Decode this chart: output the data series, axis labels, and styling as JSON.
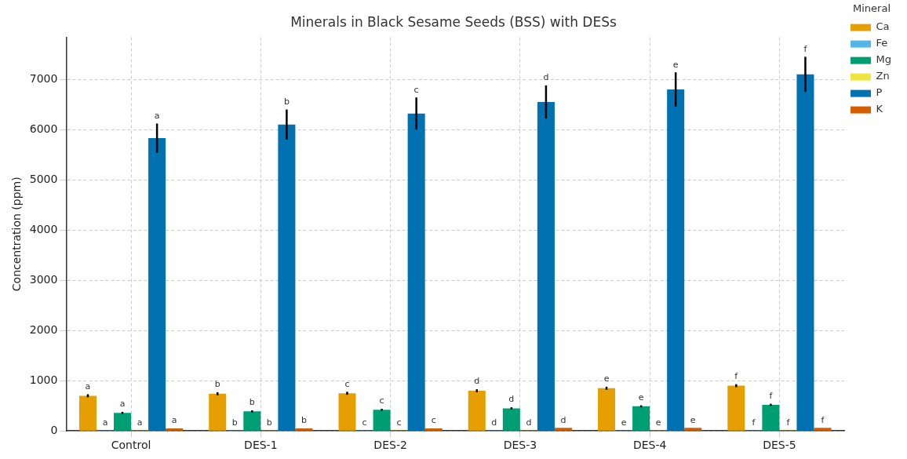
{
  "chart_data": {
    "type": "bar",
    "title": "Minerals in Black Sesame Seeds (BSS) with DESs",
    "ylabel": "Concentration (ppm)",
    "legend_title": "Mineral",
    "categories": [
      "Control",
      "DES-1",
      "DES-2",
      "DES-3",
      "DES-4",
      "DES-5"
    ],
    "series": [
      {
        "name": "Ca",
        "color": "#e69f00",
        "values": [
          700,
          740,
          750,
          800,
          850,
          900
        ],
        "errors": [
          30,
          30,
          30,
          30,
          30,
          30
        ],
        "value_labels": [
          "a",
          "b",
          "c",
          "d",
          "e",
          "f"
        ]
      },
      {
        "name": "Fe",
        "color": "#56b4e9",
        "values": [
          10,
          10,
          10,
          10,
          10,
          10
        ],
        "value_labels": [
          "a",
          "b",
          "c",
          "d",
          "e",
          "f"
        ]
      },
      {
        "name": "Mg",
        "color": "#009e73",
        "values": [
          360,
          390,
          420,
          450,
          490,
          520
        ],
        "errors": [
          20,
          20,
          20,
          20,
          20,
          20
        ],
        "value_labels": [
          "a",
          "b",
          "c",
          "d",
          "e",
          "f"
        ]
      },
      {
        "name": "Zn",
        "color": "#f0e442",
        "values": [
          10,
          10,
          10,
          10,
          10,
          10
        ],
        "value_labels": [
          "a",
          "b",
          "c",
          "d",
          "e",
          "f"
        ]
      },
      {
        "name": "P",
        "color": "#0072b2",
        "values": [
          5830,
          6100,
          6320,
          6550,
          6800,
          7100
        ],
        "errors": [
          290,
          300,
          320,
          330,
          340,
          350
        ],
        "value_labels": [
          "a",
          "b",
          "c",
          "d",
          "e",
          "f"
        ]
      },
      {
        "name": "K",
        "color": "#d55e00",
        "values": [
          50,
          50,
          50,
          60,
          60,
          60
        ],
        "value_labels": [
          "a",
          "b",
          "c",
          "d",
          "e",
          "f"
        ]
      }
    ],
    "ylim": [
      0,
      7840
    ],
    "yticks": [
      0,
      1000,
      2000,
      3000,
      4000,
      5000,
      6000,
      7000
    ],
    "grid": true,
    "legend": "top right"
  }
}
